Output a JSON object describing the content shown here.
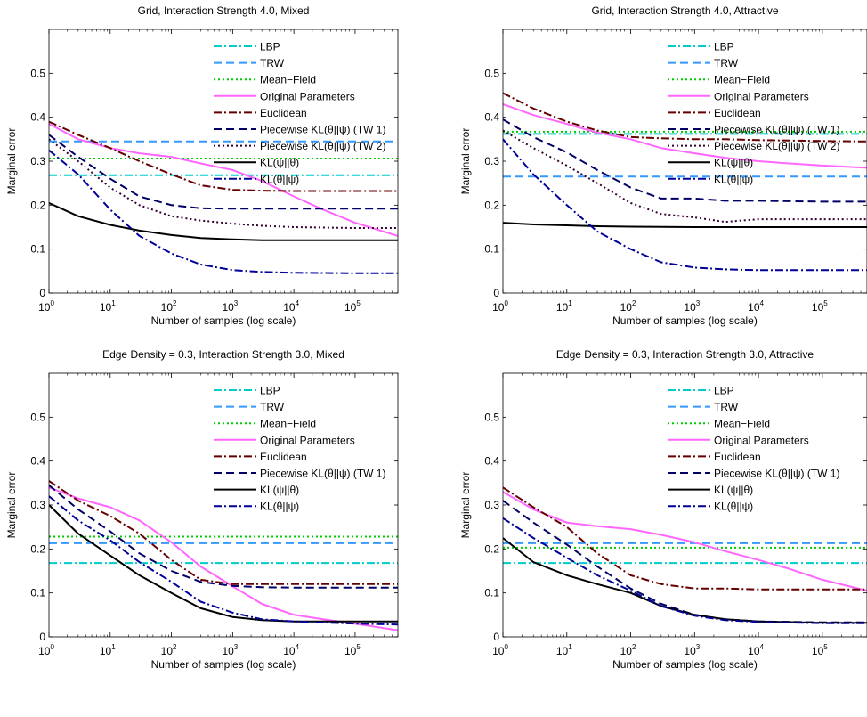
{
  "chart_data": [
    {
      "type": "line",
      "title": "Grid, Interaction Strength 4.0, Mixed",
      "xlabel": "Number of samples (log scale)",
      "ylabel": "Marginal error",
      "xscale": "log",
      "xlim": [
        1,
        500000
      ],
      "ylim": [
        0,
        0.6
      ],
      "yticks": [
        "0",
        "0.1",
        "0.2",
        "0.3",
        "0.4",
        "0.5"
      ],
      "xticks": [
        {
          "base": "10",
          "exp": "0"
        },
        {
          "base": "10",
          "exp": "1"
        },
        {
          "base": "10",
          "exp": "2"
        },
        {
          "base": "10",
          "exp": "3"
        },
        {
          "base": "10",
          "exp": "4"
        },
        {
          "base": "10",
          "exp": "5"
        }
      ],
      "legend_position": "top-center",
      "series": [
        {
          "name": "LBP",
          "color": "#00CCCC",
          "dash": "dashdot",
          "x": [
            1,
            500000
          ],
          "y": [
            0.268,
            0.268
          ]
        },
        {
          "name": "TRW",
          "color": "#3399FF",
          "dash": "dashed",
          "x": [
            1,
            500000
          ],
          "y": [
            0.345,
            0.345
          ]
        },
        {
          "name": "Mean−Field",
          "color": "#00CC00",
          "dash": "dotted",
          "x": [
            1,
            500000
          ],
          "y": [
            0.306,
            0.306
          ]
        },
        {
          "name": "Original Parameters",
          "color": "#FF66FF",
          "dash": "solid",
          "x": [
            1,
            3,
            10,
            30,
            100,
            300,
            1000,
            3000,
            10000,
            30000,
            100000,
            500000
          ],
          "y": [
            0.385,
            0.35,
            0.33,
            0.318,
            0.31,
            0.295,
            0.28,
            0.255,
            0.22,
            0.19,
            0.16,
            0.13
          ]
        },
        {
          "name": "Euclidean",
          "color": "#660000",
          "dash": "dashdot",
          "x": [
            1,
            3,
            10,
            30,
            100,
            300,
            1000,
            3000,
            10000,
            100000,
            500000
          ],
          "y": [
            0.39,
            0.36,
            0.33,
            0.3,
            0.27,
            0.245,
            0.235,
            0.233,
            0.232,
            0.232,
            0.232
          ]
        },
        {
          "name": "Piecewise KL(θ||ψ) (TW 1)",
          "color": "#000066",
          "dash": "dashed",
          "x": [
            1,
            3,
            10,
            30,
            100,
            300,
            1000,
            3000,
            10000,
            100000,
            500000
          ],
          "y": [
            0.36,
            0.31,
            0.26,
            0.22,
            0.2,
            0.193,
            0.192,
            0.192,
            0.192,
            0.192,
            0.192
          ]
        },
        {
          "name": "Piecewise KL(θ||ψ) (TW 2)",
          "color": "#330033",
          "dash": "dotted",
          "x": [
            1,
            3,
            10,
            30,
            100,
            300,
            1000,
            3000,
            10000,
            100000,
            500000
          ],
          "y": [
            0.35,
            0.3,
            0.24,
            0.2,
            0.175,
            0.165,
            0.158,
            0.153,
            0.15,
            0.148,
            0.148
          ]
        },
        {
          "name": "KL(ψ||θ)",
          "color": "#000000",
          "dash": "solid",
          "x": [
            1,
            3,
            10,
            30,
            100,
            300,
            1000,
            3000,
            10000,
            100000,
            500000
          ],
          "y": [
            0.205,
            0.175,
            0.155,
            0.142,
            0.132,
            0.125,
            0.122,
            0.12,
            0.12,
            0.12,
            0.12
          ]
        },
        {
          "name": "KL(θ||ψ)",
          "color": "#000099",
          "dash": "dashdot",
          "x": [
            1,
            3,
            10,
            30,
            100,
            300,
            1000,
            3000,
            10000,
            100000,
            500000
          ],
          "y": [
            0.325,
            0.27,
            0.19,
            0.13,
            0.09,
            0.065,
            0.052,
            0.048,
            0.046,
            0.045,
            0.045
          ]
        }
      ]
    },
    {
      "type": "line",
      "title": "Grid, Interaction Strength 4.0, Attractive",
      "xlabel": "Number of samples (log scale)",
      "ylabel": "Marginal error",
      "xscale": "log",
      "xlim": [
        1,
        500000
      ],
      "ylim": [
        0,
        0.6
      ],
      "yticks": [
        "0",
        "0.1",
        "0.2",
        "0.3",
        "0.4",
        "0.5"
      ],
      "xticks": [
        {
          "base": "10",
          "exp": "0"
        },
        {
          "base": "10",
          "exp": "1"
        },
        {
          "base": "10",
          "exp": "2"
        },
        {
          "base": "10",
          "exp": "3"
        },
        {
          "base": "10",
          "exp": "4"
        },
        {
          "base": "10",
          "exp": "5"
        }
      ],
      "legend_position": "top-center",
      "series": [
        {
          "name": "LBP",
          "color": "#00CCCC",
          "dash": "dashdot",
          "x": [
            1,
            500000
          ],
          "y": [
            0.362,
            0.362
          ]
        },
        {
          "name": "TRW",
          "color": "#3399FF",
          "dash": "dashed",
          "x": [
            1,
            500000
          ],
          "y": [
            0.265,
            0.265
          ]
        },
        {
          "name": "Mean−Field",
          "color": "#00CC00",
          "dash": "dotted",
          "x": [
            1,
            500000
          ],
          "y": [
            0.367,
            0.367
          ]
        },
        {
          "name": "Original Parameters",
          "color": "#FF66FF",
          "dash": "solid",
          "x": [
            1,
            3,
            10,
            30,
            100,
            300,
            1000,
            3000,
            10000,
            30000,
            100000,
            500000
          ],
          "y": [
            0.43,
            0.405,
            0.385,
            0.365,
            0.35,
            0.33,
            0.318,
            0.308,
            0.3,
            0.295,
            0.29,
            0.285
          ]
        },
        {
          "name": "Euclidean",
          "color": "#660000",
          "dash": "dashdot",
          "x": [
            1,
            3,
            10,
            30,
            100,
            300,
            1000,
            3000,
            10000,
            100000,
            500000
          ],
          "y": [
            0.455,
            0.42,
            0.39,
            0.37,
            0.355,
            0.352,
            0.35,
            0.35,
            0.348,
            0.346,
            0.345
          ]
        },
        {
          "name": "Piecewise KL(θ||ψ) (TW 1)",
          "color": "#000066",
          "dash": "dashed",
          "x": [
            1,
            3,
            10,
            30,
            100,
            300,
            1000,
            3000,
            10000,
            100000,
            500000
          ],
          "y": [
            0.395,
            0.355,
            0.32,
            0.28,
            0.24,
            0.215,
            0.215,
            0.21,
            0.21,
            0.208,
            0.208
          ]
        },
        {
          "name": "Piecewise KL(θ||ψ) (TW 2)",
          "color": "#330033",
          "dash": "dotted",
          "x": [
            1,
            3,
            10,
            30,
            100,
            300,
            1000,
            3000,
            10000,
            100000,
            500000
          ],
          "y": [
            0.37,
            0.33,
            0.29,
            0.25,
            0.205,
            0.18,
            0.172,
            0.162,
            0.168,
            0.168,
            0.168
          ]
        },
        {
          "name": "KL(ψ||θ)",
          "color": "#000000",
          "dash": "solid",
          "x": [
            1,
            3,
            10,
            30,
            100,
            1000,
            10000,
            100000,
            500000
          ],
          "y": [
            0.16,
            0.156,
            0.154,
            0.152,
            0.151,
            0.15,
            0.15,
            0.15,
            0.15
          ]
        },
        {
          "name": "KL(θ||ψ)",
          "color": "#000099",
          "dash": "dashdot",
          "x": [
            1,
            3,
            10,
            30,
            100,
            300,
            1000,
            3000,
            10000,
            100000,
            500000
          ],
          "y": [
            0.35,
            0.27,
            0.2,
            0.14,
            0.1,
            0.07,
            0.058,
            0.054,
            0.052,
            0.052,
            0.052
          ]
        }
      ]
    },
    {
      "type": "line",
      "title": "Edge Density = 0.3, Interaction Strength 3.0, Mixed",
      "xlabel": "Number of samples (log scale)",
      "ylabel": "Marginal error",
      "xscale": "log",
      "xlim": [
        1,
        500000
      ],
      "ylim": [
        0,
        0.6
      ],
      "yticks": [
        "0",
        "0.1",
        "0.2",
        "0.3",
        "0.4",
        "0.5"
      ],
      "xticks": [
        {
          "base": "10",
          "exp": "0"
        },
        {
          "base": "10",
          "exp": "1"
        },
        {
          "base": "10",
          "exp": "2"
        },
        {
          "base": "10",
          "exp": "3"
        },
        {
          "base": "10",
          "exp": "4"
        },
        {
          "base": "10",
          "exp": "5"
        }
      ],
      "legend_position": "top-center",
      "series": [
        {
          "name": "LBP",
          "color": "#00CCCC",
          "dash": "dashdot",
          "x": [
            1,
            500000
          ],
          "y": [
            0.168,
            0.168
          ]
        },
        {
          "name": "TRW",
          "color": "#3399FF",
          "dash": "dashed",
          "x": [
            1,
            500000
          ],
          "y": [
            0.213,
            0.213
          ]
        },
        {
          "name": "Mean−Field",
          "color": "#00CC00",
          "dash": "dotted",
          "x": [
            1,
            500000
          ],
          "y": [
            0.228,
            0.228
          ]
        },
        {
          "name": "Original Parameters",
          "color": "#FF66FF",
          "dash": "solid",
          "x": [
            1,
            3,
            10,
            30,
            100,
            300,
            1000,
            3000,
            10000,
            30000,
            100000,
            500000
          ],
          "y": [
            0.34,
            0.315,
            0.295,
            0.265,
            0.215,
            0.16,
            0.115,
            0.075,
            0.05,
            0.04,
            0.03,
            0.015
          ]
        },
        {
          "name": "Euclidean",
          "color": "#660000",
          "dash": "dashdot",
          "x": [
            1,
            3,
            10,
            30,
            100,
            300,
            1000,
            3000,
            10000,
            100000,
            500000
          ],
          "y": [
            0.355,
            0.31,
            0.275,
            0.235,
            0.175,
            0.13,
            0.12,
            0.12,
            0.12,
            0.12,
            0.12
          ]
        },
        {
          "name": "Piecewise KL(θ||ψ) (TW 1)",
          "color": "#000066",
          "dash": "dashed",
          "x": [
            1,
            3,
            10,
            30,
            100,
            300,
            1000,
            3000,
            10000,
            100000,
            500000
          ],
          "y": [
            0.345,
            0.29,
            0.24,
            0.19,
            0.15,
            0.125,
            0.116,
            0.113,
            0.112,
            0.112,
            0.112
          ]
        },
        {
          "name": "KL(ψ||θ)",
          "color": "#000000",
          "dash": "solid",
          "x": [
            1,
            3,
            10,
            30,
            100,
            300,
            1000,
            3000,
            10000,
            100000,
            500000
          ],
          "y": [
            0.3,
            0.235,
            0.185,
            0.14,
            0.1,
            0.065,
            0.045,
            0.038,
            0.035,
            0.035,
            0.035
          ]
        },
        {
          "name": "KL(θ||ψ)",
          "color": "#000099",
          "dash": "dashdot",
          "x": [
            1,
            3,
            10,
            30,
            100,
            300,
            1000,
            3000,
            10000,
            100000,
            500000
          ],
          "y": [
            0.32,
            0.265,
            0.22,
            0.17,
            0.125,
            0.08,
            0.055,
            0.04,
            0.035,
            0.03,
            0.028
          ]
        }
      ]
    },
    {
      "type": "line",
      "title": "Edge Density = 0.3, Interaction Strength 3.0, Attractive",
      "xlabel": "Number of samples (log scale)",
      "ylabel": "Marginal error",
      "xscale": "log",
      "xlim": [
        1,
        500000
      ],
      "ylim": [
        0,
        0.6
      ],
      "yticks": [
        "0",
        "0.1",
        "0.2",
        "0.3",
        "0.4",
        "0.5"
      ],
      "xticks": [
        {
          "base": "10",
          "exp": "0"
        },
        {
          "base": "10",
          "exp": "1"
        },
        {
          "base": "10",
          "exp": "2"
        },
        {
          "base": "10",
          "exp": "3"
        },
        {
          "base": "10",
          "exp": "4"
        },
        {
          "base": "10",
          "exp": "5"
        }
      ],
      "legend_position": "top-center",
      "series": [
        {
          "name": "LBP",
          "color": "#00CCCC",
          "dash": "dashdot",
          "x": [
            1,
            500000
          ],
          "y": [
            0.168,
            0.168
          ]
        },
        {
          "name": "TRW",
          "color": "#3399FF",
          "dash": "dashed",
          "x": [
            1,
            500000
          ],
          "y": [
            0.213,
            0.213
          ]
        },
        {
          "name": "Mean−Field",
          "color": "#00CC00",
          "dash": "dotted",
          "x": [
            1,
            500000
          ],
          "y": [
            0.203,
            0.203
          ]
        },
        {
          "name": "Original Parameters",
          "color": "#FF66FF",
          "dash": "solid",
          "x": [
            1,
            3,
            10,
            30,
            100,
            300,
            1000,
            3000,
            10000,
            30000,
            100000,
            500000
          ],
          "y": [
            0.33,
            0.29,
            0.26,
            0.252,
            0.245,
            0.232,
            0.215,
            0.195,
            0.175,
            0.155,
            0.13,
            0.105
          ]
        },
        {
          "name": "Euclidean",
          "color": "#660000",
          "dash": "dashdot",
          "x": [
            1,
            3,
            10,
            30,
            100,
            300,
            1000,
            3000,
            10000,
            100000,
            500000
          ],
          "y": [
            0.34,
            0.295,
            0.25,
            0.19,
            0.14,
            0.12,
            0.11,
            0.11,
            0.108,
            0.108,
            0.108
          ]
        },
        {
          "name": "Piecewise KL(θ||ψ) (TW 1)",
          "color": "#000066",
          "dash": "dashed",
          "x": [
            1,
            3,
            10,
            30,
            100,
            300,
            1000,
            3000,
            10000,
            100000,
            500000
          ],
          "y": [
            0.31,
            0.26,
            0.21,
            0.16,
            0.11,
            0.075,
            0.05,
            0.04,
            0.035,
            0.033,
            0.033
          ]
        },
        {
          "name": "KL(ψ||θ)",
          "color": "#000000",
          "dash": "solid",
          "x": [
            1,
            3,
            10,
            30,
            100,
            300,
            1000,
            3000,
            10000,
            100000,
            500000
          ],
          "y": [
            0.225,
            0.17,
            0.14,
            0.12,
            0.1,
            0.07,
            0.05,
            0.04,
            0.035,
            0.032,
            0.032
          ]
        },
        {
          "name": "KL(θ||ψ)",
          "color": "#000099",
          "dash": "dashdot",
          "x": [
            1,
            3,
            10,
            30,
            100,
            300,
            1000,
            3000,
            10000,
            100000,
            500000
          ],
          "y": [
            0.27,
            0.225,
            0.18,
            0.14,
            0.105,
            0.07,
            0.048,
            0.038,
            0.034,
            0.031,
            0.031
          ]
        }
      ]
    }
  ]
}
